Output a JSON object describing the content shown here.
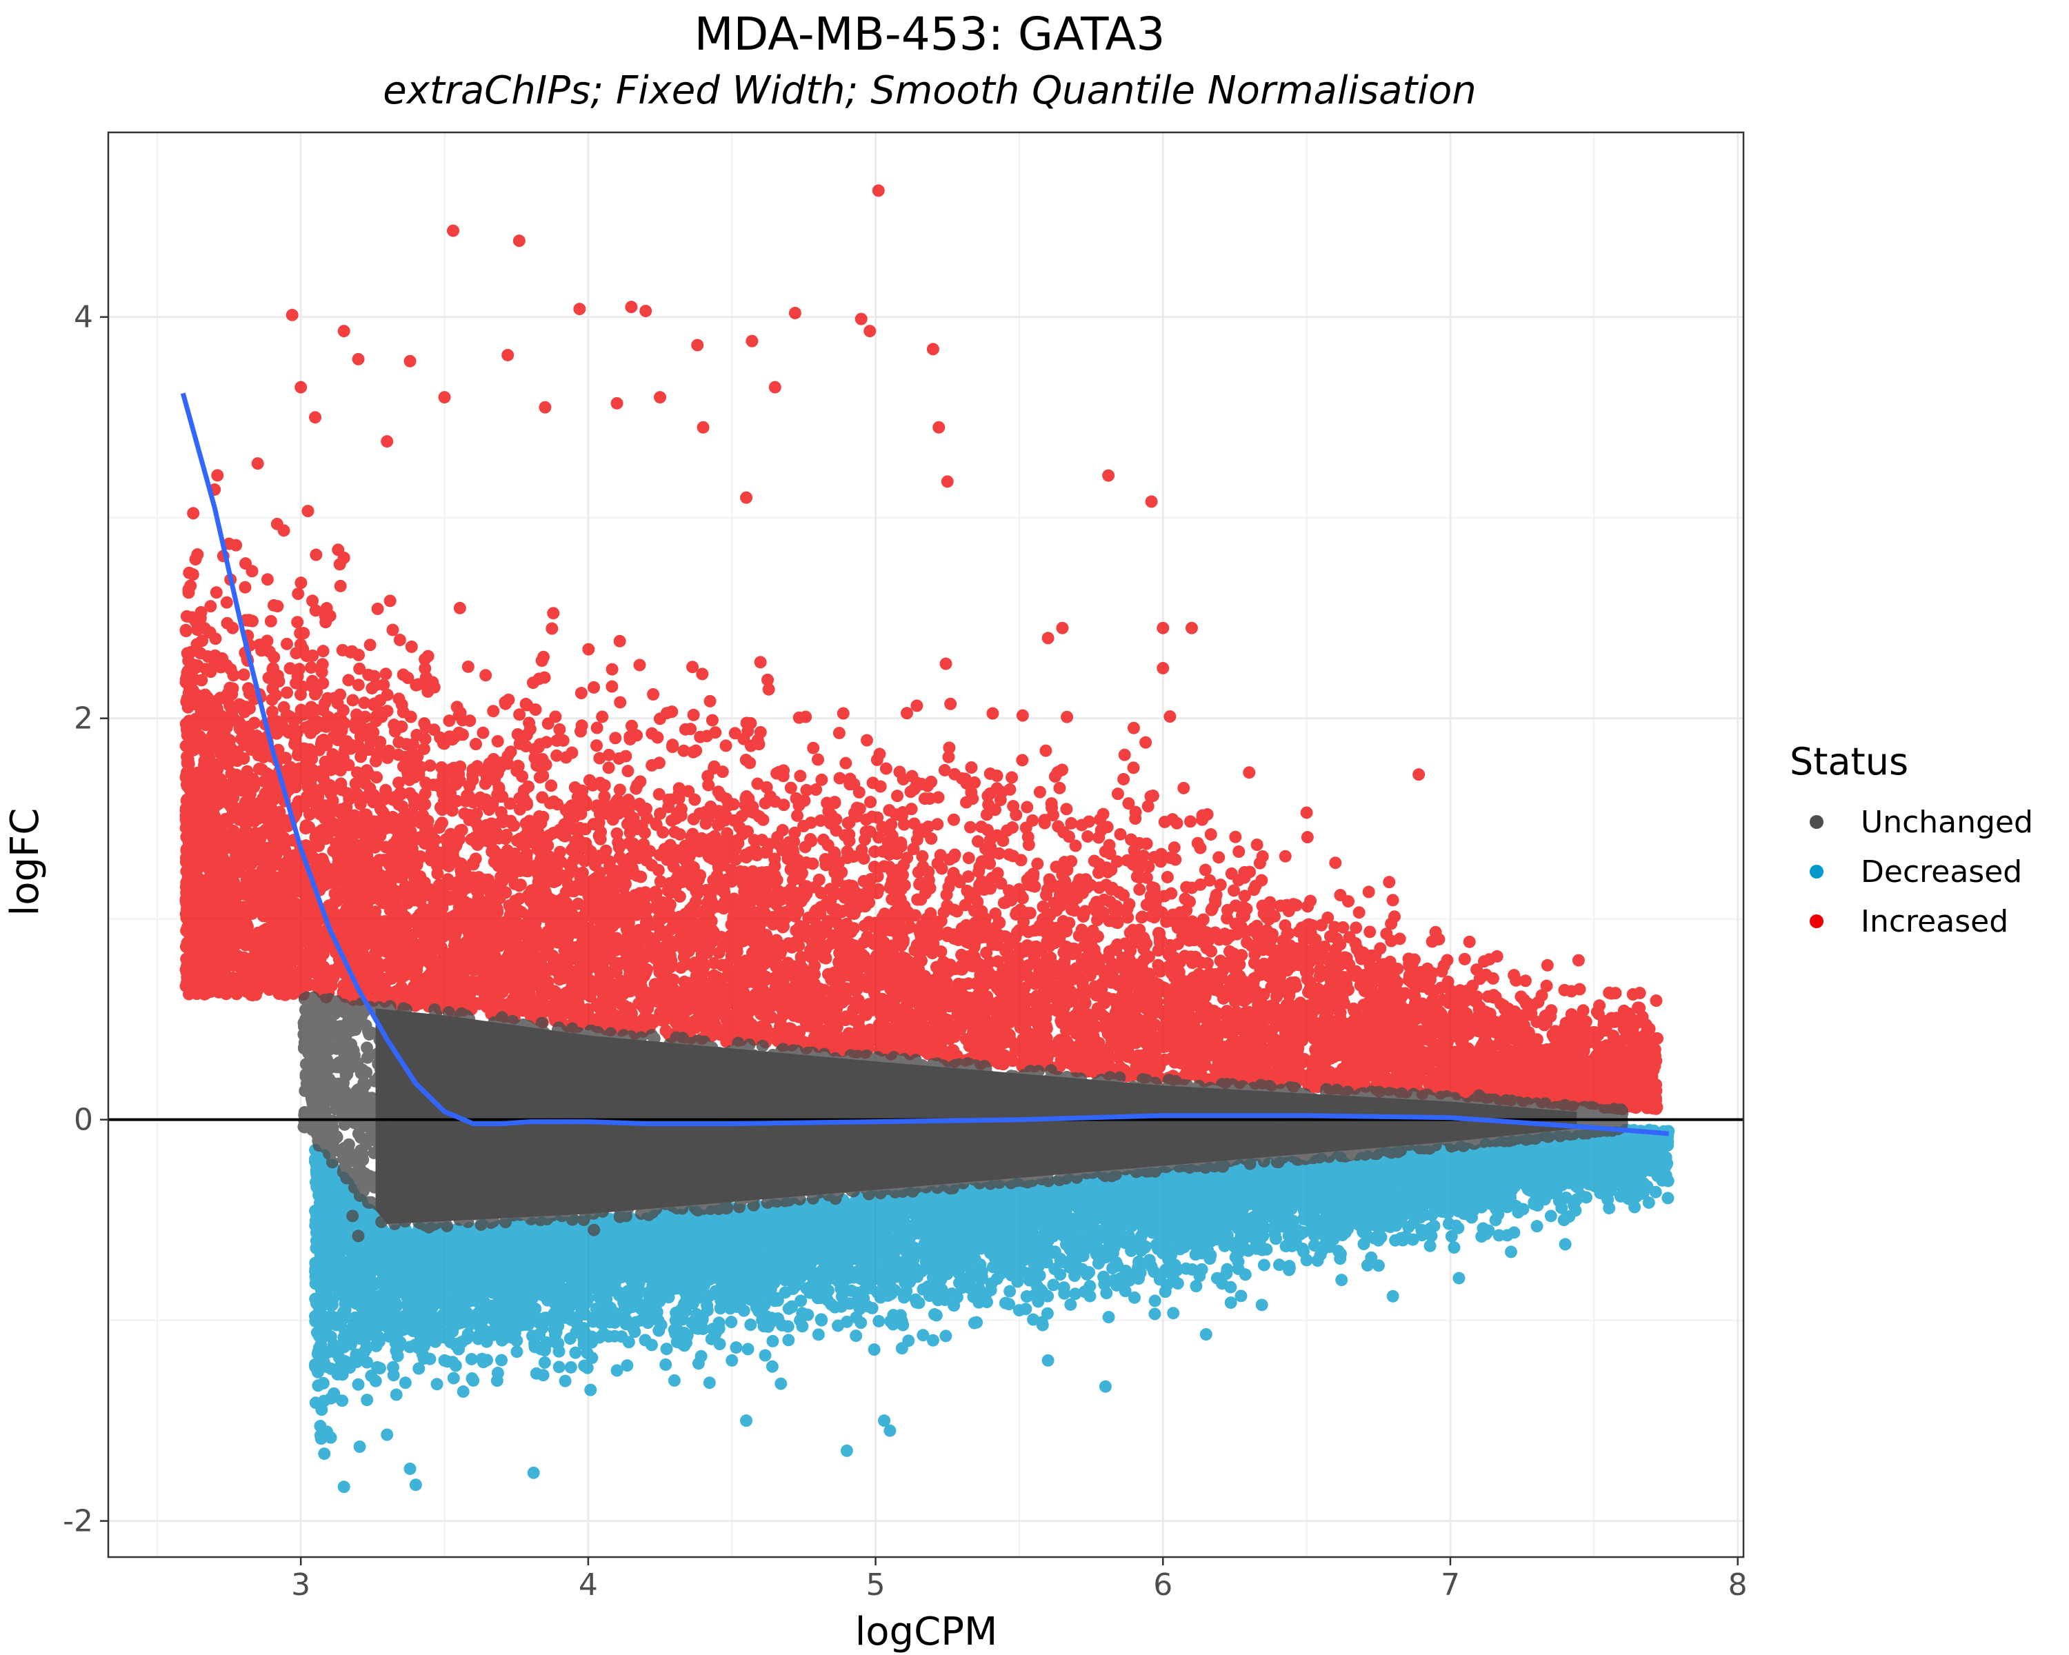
{
  "chart_data": {
    "type": "scatter",
    "title": "MDA-MB-453: GATA3",
    "subtitle": "extraChIPs; Fixed Width; Smooth Quantile Normalisation",
    "xlabel": "logCPM",
    "ylabel": "logFC",
    "xlim": [
      2.33,
      8.02
    ],
    "ylim": [
      -2.18,
      4.92
    ],
    "x_ticks": [
      3,
      4,
      5,
      6,
      7,
      8
    ],
    "y_ticks": [
      -2,
      0,
      2,
      4
    ],
    "x_tick_labels": [
      "3",
      "4",
      "5",
      "6",
      "7",
      "8"
    ],
    "y_tick_labels": [
      "-2",
      "0",
      "2",
      "4"
    ],
    "grid": true,
    "reference_line": {
      "y": 0,
      "color": "#000000"
    },
    "legend": {
      "title": "Status",
      "position": "right",
      "entries": [
        {
          "label": "Unchanged",
          "color": "#4d4d4d"
        },
        {
          "label": "Decreased",
          "color": "#0099cc"
        },
        {
          "label": "Increased",
          "color": "#ee0000"
        }
      ]
    },
    "series": [
      {
        "name": "Unchanged",
        "color": "#4d4d4d",
        "region": {
          "x": [
            3.01,
            7.6
          ],
          "y_upper": [
            [
              3.01,
              0.62
            ],
            [
              3.5,
              0.55
            ],
            [
              4.0,
              0.45
            ],
            [
              5.0,
              0.32
            ],
            [
              6.0,
              0.2
            ],
            [
              7.0,
              0.12
            ],
            [
              7.6,
              0.05
            ]
          ],
          "y_lower": [
            [
              3.01,
              -0.05
            ],
            [
              3.3,
              -0.55
            ],
            [
              4.0,
              -0.5
            ],
            [
              5.0,
              -0.38
            ],
            [
              6.0,
              -0.26
            ],
            [
              7.0,
              -0.14
            ],
            [
              7.6,
              -0.05
            ]
          ]
        },
        "points": [
          [
            3.02,
            0.6
          ],
          [
            3.05,
            0.55
          ],
          [
            3.1,
            0.6
          ],
          [
            3.15,
            0.45
          ],
          [
            3.18,
            0.3
          ],
          [
            3.2,
            0.15
          ],
          [
            3.22,
            0.05
          ],
          [
            3.25,
            -0.1
          ],
          [
            3.28,
            -0.3
          ],
          [
            3.3,
            -0.45
          ],
          [
            3.18,
            -0.48
          ],
          [
            3.2,
            -0.58
          ],
          [
            4.02,
            -0.55
          ],
          [
            7.1,
            0.12
          ],
          [
            7.15,
            0.05
          ],
          [
            7.2,
            -0.02
          ],
          [
            7.3,
            0.08
          ],
          [
            7.35,
            -0.05
          ],
          [
            7.45,
            0.02
          ],
          [
            7.5,
            -0.04
          ],
          [
            7.2,
            -0.1
          ]
        ]
      },
      {
        "name": "Decreased",
        "color": "#0099cc",
        "points": [
          [
            3.4,
            -1.82
          ],
          [
            3.15,
            -1.83
          ],
          [
            3.38,
            -1.74
          ],
          [
            3.3,
            -1.57
          ],
          [
            3.05,
            -1.22
          ],
          [
            3.05,
            -0.98
          ],
          [
            3.2,
            -1.32
          ],
          [
            3.81,
            -1.76
          ],
          [
            4.9,
            -1.65
          ],
          [
            5.05,
            -1.55
          ],
          [
            5.03,
            -1.5
          ],
          [
            4.55,
            -1.5
          ],
          [
            5.8,
            -1.33
          ],
          [
            6.15,
            -1.07
          ],
          [
            7.03,
            -0.79
          ],
          [
            6.8,
            -0.88
          ],
          [
            3.1,
            -0.8
          ],
          [
            3.25,
            -1.05
          ],
          [
            3.5,
            -1.2
          ],
          [
            3.6,
            -1.3
          ],
          [
            4.1,
            -1.25
          ],
          [
            4.5,
            -1.2
          ],
          [
            5.2,
            -1.1
          ],
          [
            5.5,
            -0.95
          ],
          [
            6.5,
            -0.7
          ],
          [
            6.9,
            -0.55
          ],
          [
            7.6,
            -0.2
          ],
          [
            7.75,
            -0.23
          ],
          [
            7.72,
            -0.23
          ],
          [
            7.4,
            -0.28
          ],
          [
            7.3,
            -0.2
          ],
          [
            7.1,
            -0.3
          ],
          [
            7.0,
            -0.4
          ],
          [
            3.7,
            -1.1
          ],
          [
            4.3,
            -1.3
          ],
          [
            5.6,
            -1.2
          ]
        ],
        "cloud": {
          "x": [
            3.05,
            7.76
          ],
          "y_center": [
            [
              3.3,
              -0.9
            ],
            [
              4.0,
              -0.85
            ],
            [
              5.0,
              -0.7
            ],
            [
              6.0,
              -0.55
            ],
            [
              7.0,
              -0.35
            ],
            [
              7.7,
              -0.22
            ]
          ]
        }
      },
      {
        "name": "Increased",
        "color": "#ee0000",
        "points": [
          [
            5.01,
            4.63
          ],
          [
            3.53,
            4.43
          ],
          [
            3.76,
            4.38
          ],
          [
            3.97,
            4.04
          ],
          [
            2.97,
            4.01
          ],
          [
            3.15,
            3.93
          ],
          [
            4.15,
            4.05
          ],
          [
            4.2,
            4.03
          ],
          [
            4.72,
            4.02
          ],
          [
            4.95,
            3.99
          ],
          [
            4.98,
            3.93
          ],
          [
            5.2,
            3.84
          ],
          [
            3.72,
            3.81
          ],
          [
            3.2,
            3.79
          ],
          [
            3.38,
            3.78
          ],
          [
            4.38,
            3.86
          ],
          [
            4.57,
            3.88
          ],
          [
            2.6,
            2.44
          ],
          [
            2.7,
            3.14
          ],
          [
            2.85,
            3.27
          ],
          [
            3.0,
            3.65
          ],
          [
            3.05,
            3.5
          ],
          [
            5.81,
            3.21
          ],
          [
            5.96,
            3.08
          ],
          [
            5.22,
            3.45
          ],
          [
            5.25,
            3.18
          ],
          [
            4.65,
            3.65
          ],
          [
            6.0,
            2.45
          ],
          [
            6.1,
            2.45
          ],
          [
            6.0,
            2.25
          ],
          [
            6.89,
            1.72
          ],
          [
            6.5,
            1.53
          ],
          [
            6.3,
            1.73
          ],
          [
            7.45,
            0.65
          ],
          [
            7.7,
            0.32
          ],
          [
            7.65,
            0.23
          ],
          [
            7.45,
            0.3
          ],
          [
            7.2,
            0.45
          ],
          [
            7.25,
            0.25
          ],
          [
            7.1,
            0.55
          ],
          [
            6.6,
            1.28
          ],
          [
            7.05,
            0.8
          ],
          [
            5.6,
            2.4
          ],
          [
            5.65,
            2.45
          ],
          [
            4.1,
            3.57
          ],
          [
            4.25,
            3.6
          ],
          [
            4.4,
            3.45
          ],
          [
            3.5,
            3.6
          ],
          [
            3.3,
            3.38
          ],
          [
            3.15,
            2.8
          ],
          [
            2.75,
            2.87
          ],
          [
            2.72,
            1.47
          ],
          [
            3.85,
            3.55
          ],
          [
            4.55,
            3.1
          ]
        ],
        "cloud": {
          "x": [
            2.6,
            7.72
          ],
          "y_center": [
            [
              3.0,
              1.6
            ],
            [
              3.5,
              1.3
            ],
            [
              4.0,
              1.2
            ],
            [
              5.0,
              1.05
            ],
            [
              6.0,
              0.85
            ],
            [
              7.0,
              0.45
            ],
            [
              7.5,
              0.3
            ]
          ]
        }
      }
    ],
    "smooth_line": {
      "color": "#3366ff",
      "points": [
        [
          2.59,
          3.62
        ],
        [
          2.7,
          3.05
        ],
        [
          2.8,
          2.42
        ],
        [
          2.9,
          1.85
        ],
        [
          3.0,
          1.35
        ],
        [
          3.1,
          0.95
        ],
        [
          3.2,
          0.65
        ],
        [
          3.3,
          0.4
        ],
        [
          3.4,
          0.18
        ],
        [
          3.5,
          0.04
        ],
        [
          3.6,
          -0.02
        ],
        [
          3.7,
          -0.02
        ],
        [
          3.8,
          -0.01
        ],
        [
          4.0,
          -0.01
        ],
        [
          4.2,
          -0.02
        ],
        [
          4.5,
          -0.02
        ],
        [
          5.0,
          -0.01
        ],
        [
          5.5,
          0.0
        ],
        [
          6.0,
          0.02
        ],
        [
          6.5,
          0.02
        ],
        [
          7.0,
          0.01
        ],
        [
          7.3,
          -0.02
        ],
        [
          7.5,
          -0.04
        ],
        [
          7.76,
          -0.07
        ]
      ]
    }
  }
}
